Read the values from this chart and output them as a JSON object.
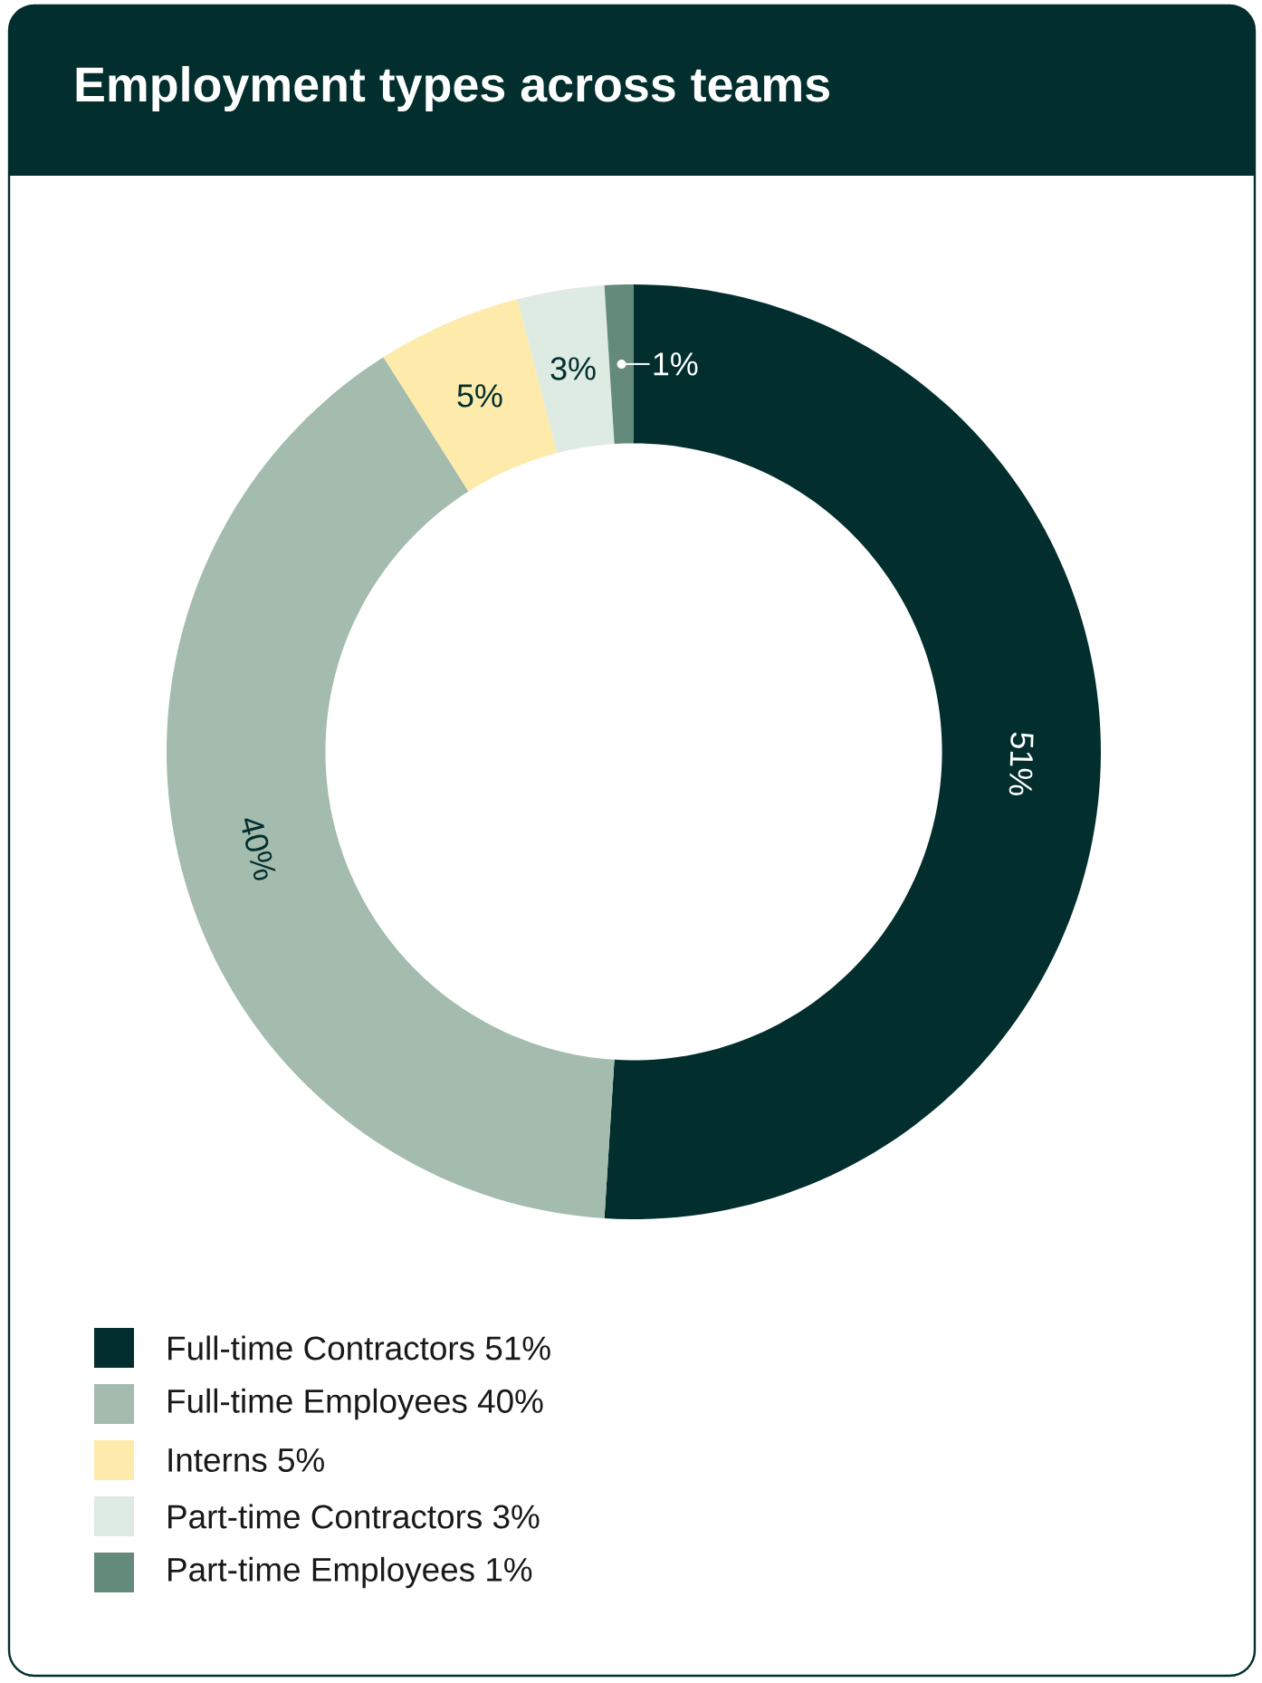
{
  "chart_data": {
    "type": "donut",
    "title": "Employment types across teams",
    "categories": [
      "Full-time Contractors 51%",
      "Full-time Employees 40%",
      "Interns 5%",
      "Part-time Contractors 3%",
      "Part-time Employees 1%"
    ],
    "values": [
      51,
      40,
      5,
      3,
      1
    ],
    "value_labels": [
      "51%",
      "40%",
      "5%",
      "3%",
      "1%"
    ],
    "colors": [
      "#022f2e",
      "#a3bcae",
      "#feeaaa",
      "#ddebe3",
      "#648a7c"
    ],
    "legend": "bottom"
  }
}
